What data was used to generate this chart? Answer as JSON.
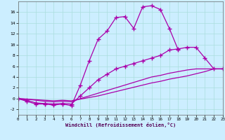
{
  "xlabel": "Windchill (Refroidissement éolien,°C)",
  "bg_color": "#cceeff",
  "grid_color": "#aadddd",
  "line_color": "#aa00aa",
  "xlim": [
    0,
    23
  ],
  "ylim": [
    -3,
    18
  ],
  "xticks": [
    0,
    1,
    2,
    3,
    4,
    5,
    6,
    7,
    8,
    9,
    10,
    11,
    12,
    13,
    14,
    15,
    16,
    17,
    18,
    19,
    20,
    21,
    22,
    23
  ],
  "yticks": [
    -2,
    0,
    2,
    4,
    6,
    8,
    10,
    12,
    14,
    16
  ],
  "curve1_x": [
    0,
    1,
    2,
    3,
    4,
    5,
    6,
    7,
    8,
    9,
    10,
    11,
    12,
    13,
    14,
    15,
    16,
    17,
    18
  ],
  "curve1_y": [
    0.0,
    -0.5,
    -1.0,
    -1.0,
    -1.2,
    -1.0,
    -1.3,
    2.5,
    7.0,
    11.0,
    12.5,
    15.0,
    15.2,
    13.0,
    17.0,
    17.2,
    16.5,
    13.0,
    9.0
  ],
  "curve2_x": [
    0,
    1,
    2,
    3,
    4,
    5,
    6,
    7,
    8,
    9,
    10,
    11,
    12,
    13,
    14,
    15,
    16,
    17,
    18,
    19,
    20,
    21,
    22,
    23
  ],
  "curve2_y": [
    0.0,
    -0.3,
    -0.8,
    -0.9,
    -1.0,
    -0.9,
    -1.0,
    0.5,
    2.0,
    3.5,
    4.5,
    5.5,
    6.0,
    6.5,
    7.0,
    7.5,
    8.0,
    9.0,
    9.2,
    9.5,
    9.5,
    7.5,
    5.5,
    5.5
  ],
  "curve3_x": [
    0,
    1,
    2,
    3,
    4,
    5,
    6,
    7,
    8,
    9,
    10,
    11,
    12,
    13,
    14,
    15,
    16,
    17,
    18,
    19,
    20,
    21,
    22,
    23
  ],
  "curve3_y": [
    0.0,
    -0.1,
    -0.3,
    -0.5,
    -0.6,
    -0.5,
    -0.6,
    0.0,
    0.5,
    1.0,
    1.5,
    2.0,
    2.5,
    3.0,
    3.5,
    4.0,
    4.3,
    4.7,
    5.0,
    5.3,
    5.5,
    5.5,
    5.5,
    5.5
  ],
  "curve4_x": [
    0,
    1,
    2,
    3,
    4,
    5,
    6,
    7,
    8,
    9,
    10,
    11,
    12,
    13,
    14,
    15,
    16,
    17,
    18,
    19,
    20,
    21,
    22,
    23
  ],
  "curve4_y": [
    0.0,
    -0.1,
    -0.2,
    -0.3,
    -0.4,
    -0.3,
    -0.4,
    -0.1,
    0.2,
    0.5,
    0.9,
    1.3,
    1.7,
    2.1,
    2.5,
    2.9,
    3.2,
    3.6,
    3.9,
    4.2,
    4.6,
    5.0,
    5.5,
    5.5
  ]
}
